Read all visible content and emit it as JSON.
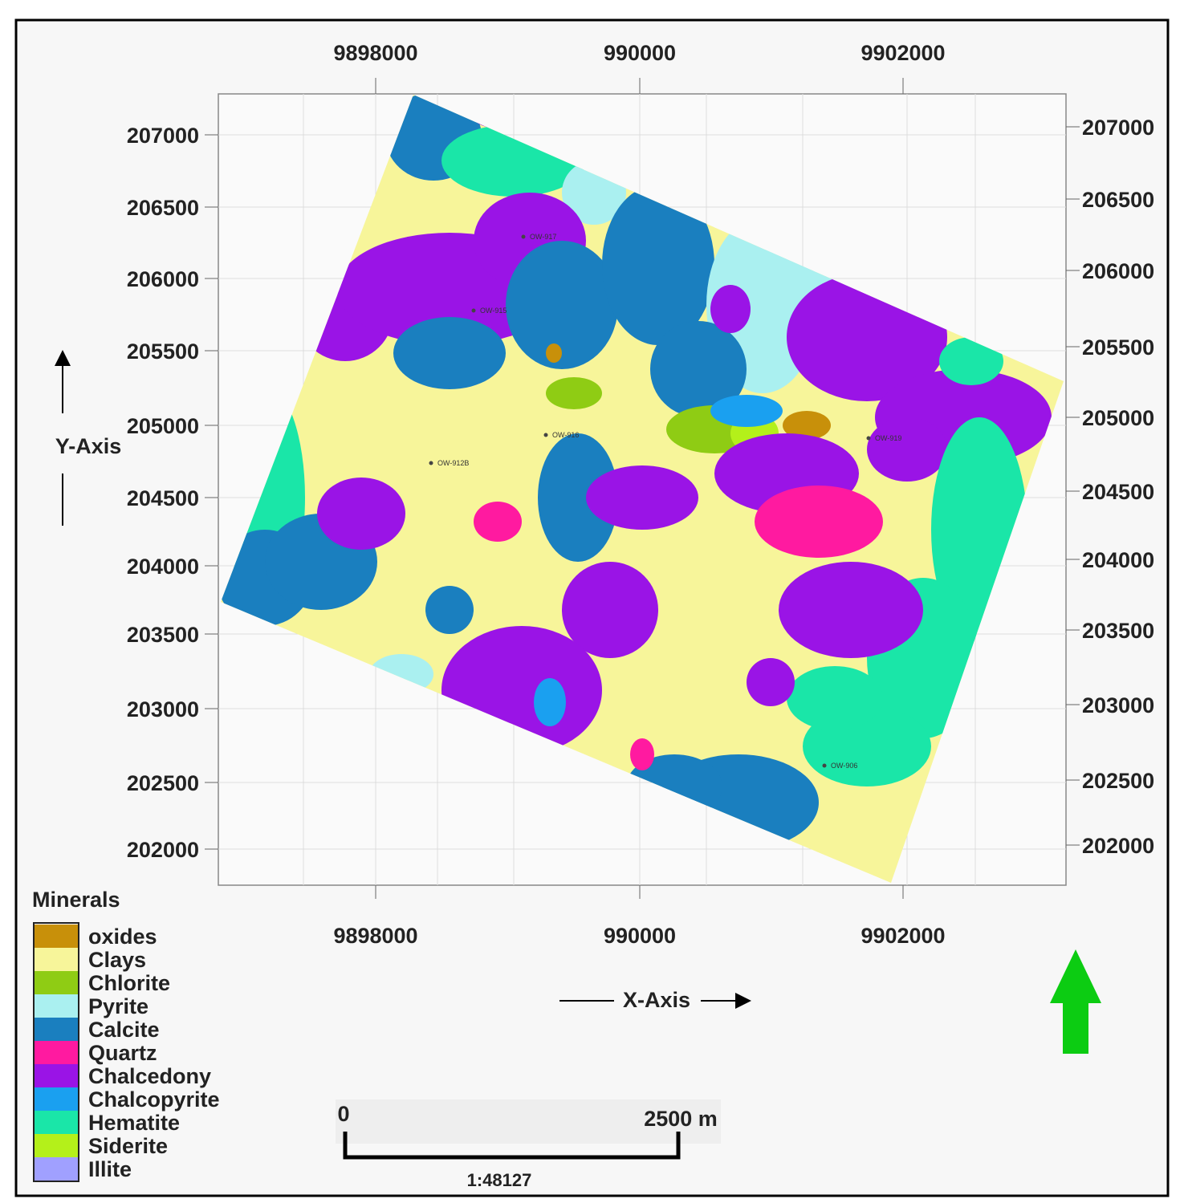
{
  "x_axis": {
    "label": "X-Axis",
    "ticks": [
      "9898000",
      "990000",
      "9902000"
    ]
  },
  "y_axis": {
    "label": "Y-Axis",
    "ticks": [
      "207000",
      "206500",
      "206000",
      "205500",
      "205000",
      "204500",
      "204000",
      "203500",
      "203000",
      "202500",
      "202000"
    ]
  },
  "legend": {
    "title": "Minerals",
    "items": [
      {
        "name": "oxides",
        "color": "#c8900a"
      },
      {
        "name": "Clays",
        "color": "#f7f59a"
      },
      {
        "name": "Chlorite",
        "color": "#8fcc14"
      },
      {
        "name": "Pyrite",
        "color": "#aaf0f0"
      },
      {
        "name": "Calcite",
        "color": "#1a7fbf"
      },
      {
        "name": "Quartz",
        "color": "#ff1aa0"
      },
      {
        "name": "Chalcedony",
        "color": "#9a14e6"
      },
      {
        "name": "Chalcopyrite",
        "color": "#1aa0f0"
      },
      {
        "name": "Hematite",
        "color": "#1ae6a8"
      },
      {
        "name": "Siderite",
        "color": "#b4f01a"
      },
      {
        "name": "Illite",
        "color": "#a0a0ff"
      }
    ]
  },
  "wells": [
    "OW-917",
    "OW-915",
    "OW-916",
    "OW-912B",
    "OW-919",
    "OW-906"
  ],
  "scale_bar": {
    "start": "0",
    "end": "2500 m",
    "ratio": "1:48127"
  }
}
